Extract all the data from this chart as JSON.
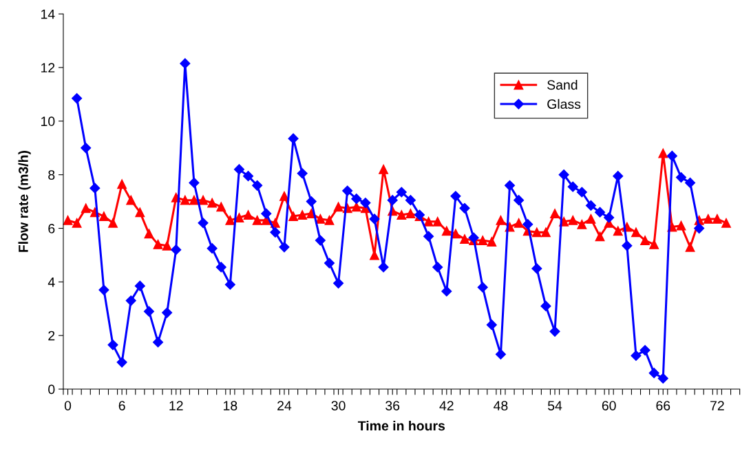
{
  "chart_data": {
    "type": "line",
    "xlabel": "Time in hours",
    "ylabel": "Flow rate (m3/h)",
    "xlim": [
      -0.5,
      74.5
    ],
    "ylim": [
      0,
      14
    ],
    "xticks": [
      0,
      6,
      12,
      18,
      24,
      30,
      36,
      42,
      48,
      54,
      60,
      66,
      72,
      {
        "value": -0.5,
        "label": null
      },
      {
        "value": 0.5,
        "label": null
      },
      {
        "value": 1.5,
        "label": null
      },
      {
        "value": 2.5,
        "label": null
      },
      {
        "value": 3.5,
        "label": null
      },
      {
        "value": 4.5,
        "label": null
      },
      {
        "value": 5.5,
        "label": null
      },
      {
        "value": 6.5,
        "label": null
      },
      {
        "value": 7.5,
        "label": null
      },
      {
        "value": 8.5,
        "label": null
      },
      {
        "value": 9.5,
        "label": null
      },
      {
        "value": 10.5,
        "label": null
      },
      {
        "value": 11.5,
        "label": null
      },
      {
        "value": 12.5,
        "label": null
      },
      {
        "value": 13.5,
        "label": null
      },
      {
        "value": 14.5,
        "label": null
      },
      {
        "value": 15.5,
        "label": null
      },
      {
        "value": 16.5,
        "label": null
      },
      {
        "value": 17.5,
        "label": null
      },
      {
        "value": 18.5,
        "label": null
      },
      {
        "value": 19.5,
        "label": null
      },
      {
        "value": 20.5,
        "label": null
      },
      {
        "value": 21.5,
        "label": null
      },
      {
        "value": 22.5,
        "label": null
      },
      {
        "value": 23.5,
        "label": null
      },
      {
        "value": 24.5,
        "label": null
      },
      {
        "value": 25.5,
        "label": null
      },
      {
        "value": 26.5,
        "label": null
      },
      {
        "value": 27.5,
        "label": null
      },
      {
        "value": 28.5,
        "label": null
      },
      {
        "value": 29.5,
        "label": null
      },
      {
        "value": 30.5,
        "label": null
      },
      {
        "value": 31.5,
        "label": null
      },
      {
        "value": 32.5,
        "label": null
      },
      {
        "value": 33.5,
        "label": null
      },
      {
        "value": 34.5,
        "label": null
      },
      {
        "value": 35.5,
        "label": null
      },
      {
        "value": 36.5,
        "label": null
      },
      {
        "value": 37.5,
        "label": null
      },
      {
        "value": 38.5,
        "label": null
      },
      {
        "value": 39.5,
        "label": null
      },
      {
        "value": 40.5,
        "label": null
      },
      {
        "value": 41.5,
        "label": null
      },
      {
        "value": 42.5,
        "label": null
      },
      {
        "value": 43.5,
        "label": null
      },
      {
        "value": 44.5,
        "label": null
      },
      {
        "value": 45.5,
        "label": null
      },
      {
        "value": 46.5,
        "label": null
      },
      {
        "value": 47.5,
        "label": null
      },
      {
        "value": 48.5,
        "label": null
      },
      {
        "value": 49.5,
        "label": null
      },
      {
        "value": 50.5,
        "label": null
      },
      {
        "value": 51.5,
        "label": null
      },
      {
        "value": 52.5,
        "label": null
      },
      {
        "value": 53.5,
        "label": null
      },
      {
        "value": 54.5,
        "label": null
      },
      {
        "value": 55.5,
        "label": null
      },
      {
        "value": 56.5,
        "label": null
      },
      {
        "value": 57.5,
        "label": null
      },
      {
        "value": 58.5,
        "label": null
      },
      {
        "value": 59.5,
        "label": null
      },
      {
        "value": 60.5,
        "label": null
      },
      {
        "value": 61.5,
        "label": null
      },
      {
        "value": 62.5,
        "label": null
      },
      {
        "value": 63.5,
        "label": null
      },
      {
        "value": 64.5,
        "label": null
      },
      {
        "value": 65.5,
        "label": null
      },
      {
        "value": 66.5,
        "label": null
      },
      {
        "value": 67.5,
        "label": null
      },
      {
        "value": 68.5,
        "label": null
      },
      {
        "value": 69.5,
        "label": null
      },
      {
        "value": 70.5,
        "label": null
      },
      {
        "value": 71.5,
        "label": null
      },
      {
        "value": 72.5,
        "label": null
      },
      {
        "value": 73.5,
        "label": null
      },
      {
        "value": 74.5,
        "label": null
      }
    ],
    "yticks": [
      0,
      2,
      4,
      6,
      8,
      10,
      12,
      14
    ],
    "grid": false,
    "legend": "top right",
    "line_style": "solid",
    "series": [
      {
        "name": "Sand",
        "color": "#ff0000",
        "marker": "triangle",
        "x": [
          0,
          1,
          2,
          3,
          4,
          5,
          6,
          7,
          8,
          9,
          10,
          11,
          12,
          13,
          14,
          15,
          16,
          17,
          18,
          19,
          20,
          21,
          22,
          23,
          24,
          25,
          26,
          27,
          28,
          29,
          30,
          31,
          32,
          33,
          34,
          35,
          36,
          37,
          38,
          39,
          40,
          41,
          42,
          43,
          44,
          45,
          46,
          47,
          48,
          49,
          50,
          51,
          52,
          53,
          54,
          55,
          56,
          57,
          58,
          59,
          60,
          61,
          62,
          63,
          64,
          65,
          66,
          67,
          68,
          69,
          70,
          71,
          72,
          73
        ],
        "values": [
          6.3,
          6.2,
          6.75,
          6.6,
          6.45,
          6.2,
          7.65,
          7.05,
          6.6,
          5.8,
          5.4,
          5.35,
          7.15,
          7.05,
          7.05,
          7.05,
          6.95,
          6.8,
          6.3,
          6.4,
          6.5,
          6.3,
          6.3,
          6.2,
          7.2,
          6.45,
          6.5,
          6.55,
          6.35,
          6.3,
          6.8,
          6.75,
          6.8,
          6.75,
          5.0,
          8.2,
          6.65,
          6.5,
          6.55,
          6.45,
          6.25,
          6.25,
          5.9,
          5.8,
          5.6,
          5.55,
          5.55,
          5.5,
          6.3,
          6.05,
          6.2,
          5.9,
          5.85,
          5.85,
          6.55,
          6.25,
          6.3,
          6.15,
          6.35,
          5.7,
          6.2,
          5.9,
          6.05,
          5.85,
          5.55,
          5.4,
          8.8,
          6.05,
          6.1,
          5.3,
          6.3,
          6.35,
          6.35,
          6.2
        ]
      },
      {
        "name": "Glass",
        "color": "#0000ff",
        "marker": "diamond",
        "x": [
          1,
          2,
          3,
          4,
          5,
          6,
          7,
          8,
          9,
          10,
          11,
          12,
          13,
          14,
          15,
          16,
          17,
          18,
          19,
          20,
          21,
          22,
          23,
          24,
          25,
          26,
          27,
          28,
          29,
          30,
          31,
          32,
          33,
          34,
          35,
          36,
          37,
          38,
          39,
          40,
          41,
          42,
          43,
          44,
          45,
          46,
          47,
          48,
          49,
          50,
          51,
          52,
          53,
          54,
          55,
          56,
          57,
          58,
          59,
          60,
          61,
          62,
          63,
          64,
          65,
          66,
          67,
          68,
          69,
          70
        ],
        "values": [
          10.85,
          9.0,
          7.5,
          3.7,
          1.65,
          1.0,
          3.3,
          3.85,
          2.9,
          1.75,
          2.85,
          5.2,
          12.15,
          7.7,
          6.2,
          5.25,
          4.55,
          3.9,
          8.2,
          7.95,
          7.6,
          6.55,
          5.85,
          5.3,
          9.35,
          8.05,
          7.0,
          5.55,
          4.7,
          3.95,
          7.4,
          7.1,
          6.95,
          6.35,
          4.55,
          7.05,
          7.35,
          7.05,
          6.5,
          5.7,
          4.55,
          3.65,
          7.2,
          6.75,
          5.65,
          3.8,
          2.4,
          1.3,
          7.6,
          7.05,
          6.15,
          4.5,
          3.1,
          2.15,
          8.0,
          7.55,
          7.35,
          6.85,
          6.6,
          6.4,
          7.95,
          5.35,
          1.25,
          1.45,
          0.6,
          0.4,
          8.7,
          7.9,
          7.7,
          6.0
        ]
      }
    ]
  }
}
